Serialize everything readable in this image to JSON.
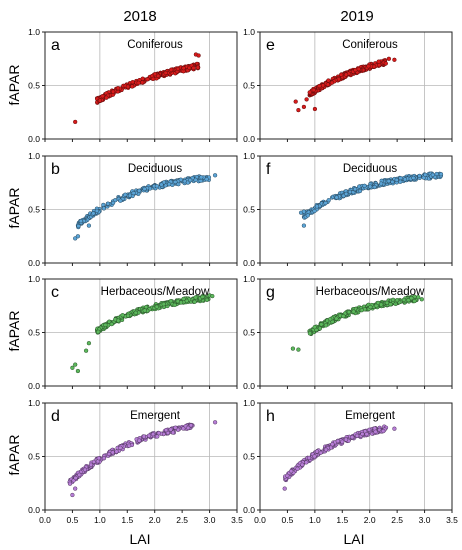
{
  "columns": [
    "2018",
    "2019"
  ],
  "x_axis_label": "LAI",
  "y_axis_label": "fAPAR",
  "chart_data": [
    {
      "type": "scatter",
      "letter": "a",
      "title": "Coniferous",
      "year": "2018",
      "color": "#d81b1b",
      "xlim": [
        0,
        3.5
      ],
      "ylim": [
        0,
        1
      ],
      "x_ticks": [
        "0.0",
        "0.5",
        "1.0",
        "1.5",
        "2.0",
        "2.5",
        "3.0",
        "3.5"
      ],
      "y_ticks": [
        "0.0",
        "0.5",
        "1.0"
      ],
      "curve": {
        "x_start": 0.95,
        "x_end": 2.8,
        "form": "0.85*(1-exp(-0.58*x))"
      },
      "outliers": [
        [
          0.55,
          0.16
        ],
        [
          1.0,
          0.36
        ],
        [
          1.05,
          0.4
        ],
        [
          2.75,
          0.79
        ],
        [
          2.8,
          0.78
        ]
      ]
    },
    {
      "type": "scatter",
      "letter": "b",
      "title": "Deciduous",
      "year": "2018",
      "color": "#5ba4d6",
      "xlim": [
        0,
        3.5
      ],
      "ylim": [
        0,
        1
      ],
      "x_ticks": [
        "0.0",
        "0.5",
        "1.0",
        "1.5",
        "2.0",
        "2.5",
        "3.0",
        "3.5"
      ],
      "y_ticks": [
        "0.0",
        "0.5",
        "1.0"
      ],
      "curve": {
        "x_start": 0.6,
        "x_end": 3.0,
        "form": "0.86*(1-exp(-0.88*x))"
      },
      "outliers": [
        [
          0.55,
          0.23
        ],
        [
          0.6,
          0.25
        ],
        [
          0.8,
          0.35
        ],
        [
          3.1,
          0.82
        ]
      ]
    },
    {
      "type": "scatter",
      "letter": "c",
      "title": "Herbaceous/Meadow",
      "year": "2018",
      "color": "#5cb85c",
      "xlim": [
        0,
        3.5
      ],
      "ylim": [
        0,
        1
      ],
      "x_ticks": [
        "0.0",
        "0.5",
        "1.0",
        "1.5",
        "2.0",
        "2.5",
        "3.0",
        "3.5"
      ],
      "y_ticks": [
        "0.0",
        "0.5",
        "1.0"
      ],
      "curve": {
        "x_start": 0.95,
        "x_end": 3.0,
        "form": "0.88*(1-exp(-0.92*x))"
      },
      "outliers": [
        [
          0.5,
          0.17
        ],
        [
          0.55,
          0.2
        ],
        [
          0.6,
          0.14
        ],
        [
          0.75,
          0.33
        ],
        [
          0.8,
          0.4
        ],
        [
          3.05,
          0.84
        ]
      ]
    },
    {
      "type": "scatter",
      "letter": "d",
      "title": "Emergent",
      "year": "2018",
      "color": "#b77dd6",
      "xlim": [
        0,
        3.5
      ],
      "ylim": [
        0,
        1
      ],
      "x_ticks": [
        "0.0",
        "0.5",
        "1.0",
        "1.5",
        "2.0",
        "2.5",
        "3.0",
        "3.5"
      ],
      "y_ticks": [
        "0.0",
        "0.5",
        "1.0"
      ],
      "curve": {
        "x_start": 0.45,
        "x_end": 2.7,
        "form": "0.9*(1-exp(-0.75*x))"
      },
      "outliers": [
        [
          0.5,
          0.14
        ],
        [
          0.55,
          0.2
        ],
        [
          3.1,
          0.82
        ]
      ]
    },
    {
      "type": "scatter",
      "letter": "e",
      "title": "Coniferous",
      "year": "2019",
      "color": "#d81b1b",
      "xlim": [
        0,
        3.5
      ],
      "ylim": [
        0,
        1
      ],
      "x_ticks": [
        "0.0",
        "0.5",
        "1.0",
        "1.5",
        "2.0",
        "2.5",
        "3.0",
        "3.5"
      ],
      "y_ticks": [
        "0.0",
        "0.5",
        "1.0"
      ],
      "curve": {
        "x_start": 0.9,
        "x_end": 2.3,
        "form": "0.9*(1-exp(-0.7*x))"
      },
      "outliers": [
        [
          0.65,
          0.35
        ],
        [
          0.7,
          0.27
        ],
        [
          0.8,
          0.3
        ],
        [
          0.85,
          0.37
        ],
        [
          1.0,
          0.28
        ],
        [
          2.35,
          0.75
        ],
        [
          2.45,
          0.74
        ]
      ]
    },
    {
      "type": "scatter",
      "letter": "f",
      "title": "Deciduous",
      "year": "2019",
      "color": "#5ba4d6",
      "xlim": [
        0,
        3.5
      ],
      "ylim": [
        0,
        1
      ],
      "x_ticks": [
        "0.0",
        "0.5",
        "1.0",
        "1.5",
        "2.0",
        "2.5",
        "3.0",
        "3.5"
      ],
      "y_ticks": [
        "0.0",
        "0.5",
        "1.0"
      ],
      "curve": {
        "x_start": 0.8,
        "x_end": 3.3,
        "form": "0.87*(1-exp(-0.88*x))"
      },
      "outliers": [
        [
          0.75,
          0.47
        ],
        [
          0.8,
          0.48
        ],
        [
          0.8,
          0.35
        ],
        [
          3.3,
          0.83
        ]
      ]
    },
    {
      "type": "scatter",
      "letter": "g",
      "title": "Herbaceous/Meadow",
      "year": "2019",
      "color": "#5cb85c",
      "xlim": [
        0,
        3.5
      ],
      "ylim": [
        0,
        1
      ],
      "x_ticks": [
        "0.0",
        "0.5",
        "1.0",
        "1.5",
        "2.0",
        "2.5",
        "3.0",
        "3.5"
      ],
      "y_ticks": [
        "0.0",
        "0.5",
        "1.0"
      ],
      "curve": {
        "x_start": 0.9,
        "x_end": 2.9,
        "form": "0.88*(1-exp(-0.92*x))"
      },
      "outliers": [
        [
          0.6,
          0.35
        ],
        [
          0.7,
          0.34
        ],
        [
          2.95,
          0.81
        ]
      ]
    },
    {
      "type": "scatter",
      "letter": "h",
      "title": "Emergent",
      "year": "2019",
      "color": "#b77dd6",
      "xlim": [
        0,
        3.5
      ],
      "ylim": [
        0,
        1
      ],
      "x_ticks": [
        "0.0",
        "0.5",
        "1.0",
        "1.5",
        "2.0",
        "2.5",
        "3.0",
        "3.5"
      ],
      "y_ticks": [
        "0.0",
        "0.5",
        "1.0"
      ],
      "curve": {
        "x_start": 0.45,
        "x_end": 2.3,
        "form": "0.88*(1-exp(-0.88*x))"
      },
      "outliers": [
        [
          0.45,
          0.2
        ],
        [
          2.45,
          0.76
        ]
      ]
    }
  ]
}
